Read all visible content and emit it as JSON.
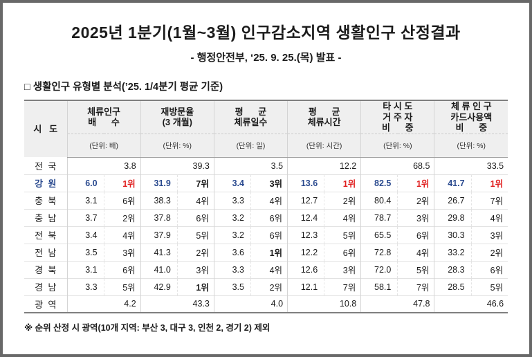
{
  "page": {
    "title": "2025년 1분기(1월~3월) 인구감소지역 생활인구 산정결과",
    "subtitle": "- 행정안전부, ‘25. 9. 25.(목) 발표 -",
    "section_title": "□ 생활인구 유형별 분석(’25. 1/4분기 평균 기준)",
    "footnote": "※ 순위 산정 시 광역(10개 지역: 부산 3, 대구 3, 인천 2, 경기 2) 제외"
  },
  "colors": {
    "highlight_blue": "#2a4a8f",
    "rank_red": "#e01e1e",
    "header_bg": "#efefef"
  },
  "table": {
    "row_header_label": "시   도",
    "columns": [
      {
        "lines": [
          "체류인구",
          "배      수"
        ],
        "unit": "(단위: 배)"
      },
      {
        "lines": [
          "재방문율",
          "(3 개월)"
        ],
        "unit": "(단위: %)"
      },
      {
        "lines": [
          "평      균",
          "체류일수"
        ],
        "unit": "(단위: 일)"
      },
      {
        "lines": [
          "평      균",
          "체류시간"
        ],
        "unit": "(단위: 시간)"
      },
      {
        "lines": [
          "타 시 도",
          "거 주 자",
          "비      중"
        ],
        "unit": "(단위: %)"
      },
      {
        "lines": [
          "체 류 인 구",
          "카드사용액",
          "비      중"
        ],
        "unit": "(단위: %)"
      }
    ],
    "rows": [
      {
        "region": "전  국",
        "style": "summary",
        "cells": [
          {
            "v": "3.8"
          },
          {
            "v": "39.3"
          },
          {
            "v": "3.5"
          },
          {
            "v": "12.2"
          },
          {
            "v": "68.5"
          },
          {
            "v": "33.5"
          }
        ]
      },
      {
        "region": "강  원",
        "style": "highlight",
        "cells": [
          {
            "v": "6.0",
            "r": "1위",
            "top": true
          },
          {
            "v": "31.9",
            "r": "7위"
          },
          {
            "v": "3.4",
            "r": "3위"
          },
          {
            "v": "13.6",
            "r": "1위",
            "top": true
          },
          {
            "v": "82.5",
            "r": "1위",
            "top": true
          },
          {
            "v": "41.7",
            "r": "1위",
            "top": true
          }
        ]
      },
      {
        "region": "충  북",
        "style": "normal",
        "cells": [
          {
            "v": "3.1",
            "r": "6위"
          },
          {
            "v": "38.3",
            "r": "4위"
          },
          {
            "v": "3.3",
            "r": "4위"
          },
          {
            "v": "12.7",
            "r": "2위"
          },
          {
            "v": "80.4",
            "r": "2위"
          },
          {
            "v": "26.7",
            "r": "7위"
          }
        ]
      },
      {
        "region": "충  남",
        "style": "normal",
        "cells": [
          {
            "v": "3.7",
            "r": "2위"
          },
          {
            "v": "37.8",
            "r": "6위"
          },
          {
            "v": "3.2",
            "r": "6위"
          },
          {
            "v": "12.4",
            "r": "4위"
          },
          {
            "v": "78.7",
            "r": "3위"
          },
          {
            "v": "29.8",
            "r": "4위"
          }
        ]
      },
      {
        "region": "전  북",
        "style": "normal",
        "cells": [
          {
            "v": "3.4",
            "r": "4위"
          },
          {
            "v": "37.9",
            "r": "5위"
          },
          {
            "v": "3.2",
            "r": "6위"
          },
          {
            "v": "12.3",
            "r": "5위"
          },
          {
            "v": "65.5",
            "r": "6위"
          },
          {
            "v": "30.3",
            "r": "3위"
          }
        ]
      },
      {
        "region": "전  남",
        "style": "normal",
        "cells": [
          {
            "v": "3.5",
            "r": "3위"
          },
          {
            "v": "41.3",
            "r": "2위"
          },
          {
            "v": "3.6",
            "r": "1위",
            "top": true
          },
          {
            "v": "12.2",
            "r": "6위"
          },
          {
            "v": "72.8",
            "r": "4위"
          },
          {
            "v": "33.2",
            "r": "2위"
          }
        ]
      },
      {
        "region": "경  북",
        "style": "normal",
        "cells": [
          {
            "v": "3.1",
            "r": "6위"
          },
          {
            "v": "41.0",
            "r": "3위"
          },
          {
            "v": "3.3",
            "r": "4위"
          },
          {
            "v": "12.6",
            "r": "3위"
          },
          {
            "v": "72.0",
            "r": "5위"
          },
          {
            "v": "28.3",
            "r": "6위"
          }
        ]
      },
      {
        "region": "경  남",
        "style": "normal",
        "cells": [
          {
            "v": "3.3",
            "r": "5위"
          },
          {
            "v": "42.9",
            "r": "1위",
            "top": true
          },
          {
            "v": "3.5",
            "r": "2위"
          },
          {
            "v": "12.1",
            "r": "7위"
          },
          {
            "v": "58.1",
            "r": "7위"
          },
          {
            "v": "28.5",
            "r": "5위"
          }
        ]
      },
      {
        "region": "광  역",
        "style": "summary",
        "cells": [
          {
            "v": "4.2"
          },
          {
            "v": "43.3"
          },
          {
            "v": "4.0"
          },
          {
            "v": "10.8"
          },
          {
            "v": "47.8"
          },
          {
            "v": "46.6"
          }
        ]
      }
    ]
  }
}
